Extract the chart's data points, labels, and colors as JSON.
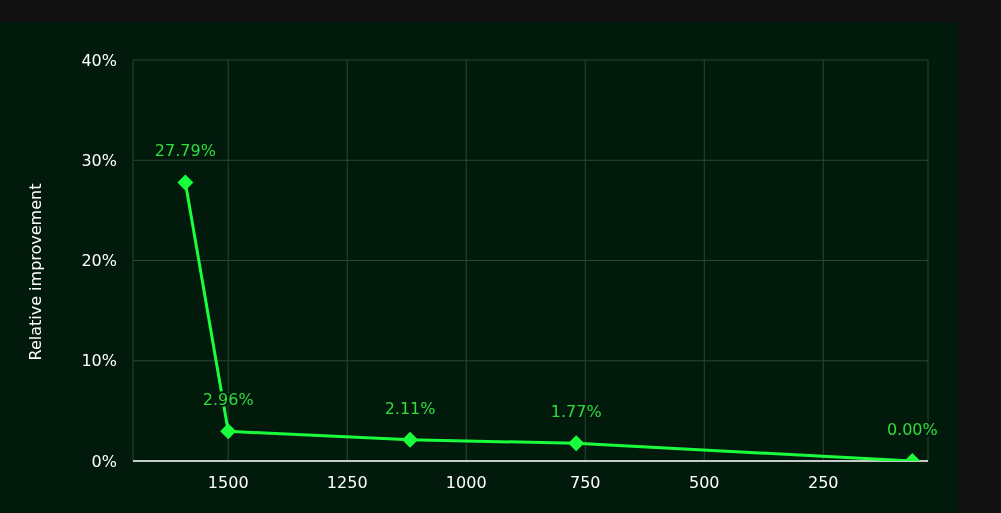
{
  "chart_data": {
    "type": "line",
    "ylabel": "Relative improvement",
    "x": [
      1590,
      1500,
      1118,
      769,
      63
    ],
    "series": [
      {
        "color": "#1aff3c",
        "values": [
          27.79,
          2.96,
          2.11,
          1.77,
          0.0
        ],
        "value_labels": [
          "27.79%",
          "2.96%",
          "2.11%",
          "1.77%",
          "0.00%"
        ]
      }
    ],
    "xlim": [
      1700,
      30
    ],
    "xticks": [
      1500,
      1250,
      1000,
      750,
      500,
      250
    ],
    "ylim": [
      0,
      40
    ],
    "yticks": [
      {
        "value": 0,
        "label": "0%"
      },
      {
        "value": 10,
        "label": "10%"
      },
      {
        "value": 20,
        "label": "20%"
      },
      {
        "value": 30,
        "label": "30%"
      },
      {
        "value": 40,
        "label": "40%"
      }
    ],
    "grid": true,
    "marker": "diamond",
    "line_style": "solid",
    "legend": false
  }
}
